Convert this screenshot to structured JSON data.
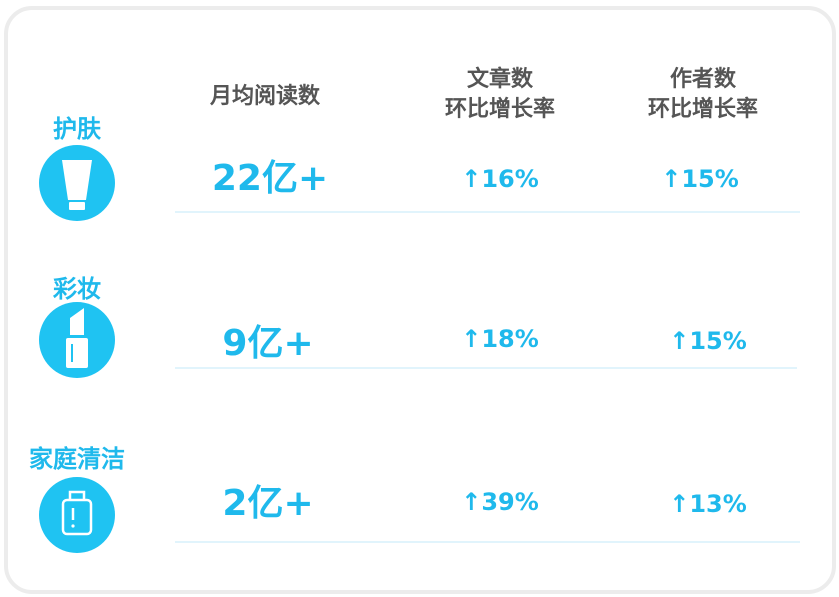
{
  "headers": [
    [
      "月均阅读数"
    ],
    [
      "文章数",
      "环比增长率"
    ],
    [
      "作者数",
      "环比增长率"
    ]
  ],
  "rows": [
    {
      "category": "护肤",
      "values": [
        "22亿+",
        "↑16%",
        "↑15%"
      ]
    },
    {
      "category": "彩妆",
      "values": [
        "9亿+",
        "↑18%",
        "↑15%"
      ]
    },
    {
      "category": "家庭清洁",
      "values": [
        "2亿+",
        "↑39%",
        "↑13%"
      ]
    }
  ]
}
